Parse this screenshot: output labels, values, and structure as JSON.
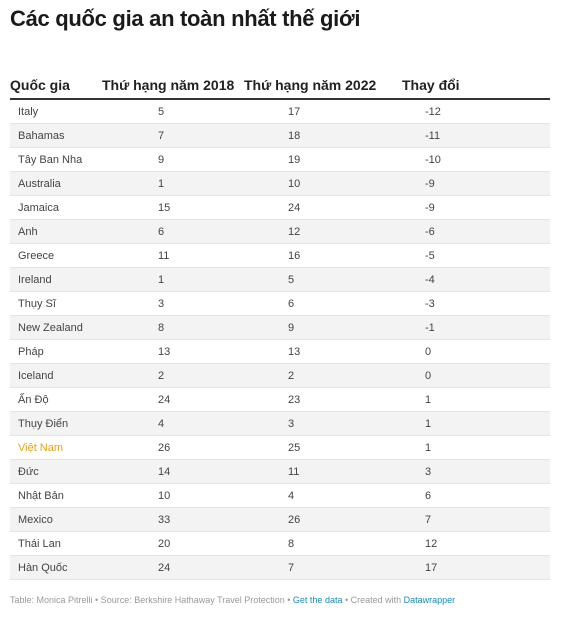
{
  "title": "Các quốc gia an toàn nhất thế giới",
  "chart_data": {
    "type": "table",
    "columns": [
      "Quốc gia",
      "Thứ hạng năm 2018",
      "Thứ hạng năm 2022",
      "Thay đổi"
    ],
    "rows": [
      [
        "Italy",
        "5",
        "17",
        "-12"
      ],
      [
        "Bahamas",
        "7",
        "18",
        "-11"
      ],
      [
        "Tây Ban Nha",
        "9",
        "19",
        "-10"
      ],
      [
        "Australia",
        "1",
        "10",
        "-9"
      ],
      [
        "Jamaica",
        "15",
        "24",
        "-9"
      ],
      [
        "Anh",
        "6",
        "12",
        "-6"
      ],
      [
        "Greece",
        "11",
        "16",
        "-5"
      ],
      [
        "Ireland",
        "1",
        "5",
        "-4"
      ],
      [
        "Thụy Sĩ",
        "3",
        "6",
        "-3"
      ],
      [
        "New Zealand",
        "8",
        "9",
        "-1"
      ],
      [
        "Pháp",
        "13",
        "13",
        "0"
      ],
      [
        "Iceland",
        "2",
        "2",
        "0"
      ],
      [
        "Ấn Độ",
        "24",
        "23",
        "1"
      ],
      [
        "Thụy Điển",
        "4",
        "3",
        "1"
      ],
      [
        "Việt Nam",
        "26",
        "25",
        "1"
      ],
      [
        "Đức",
        "14",
        "11",
        "3"
      ],
      [
        "Nhật Bản",
        "10",
        "4",
        "6"
      ],
      [
        "Mexico",
        "33",
        "26",
        "7"
      ],
      [
        "Thái Lan",
        "20",
        "8",
        "12"
      ],
      [
        "Hàn Quốc",
        "24",
        "7",
        "17"
      ]
    ],
    "highlight_row": "Việt Nam",
    "highlight_color": "#e8a317"
  },
  "footer": {
    "source_text": "Table: Monica Pitrelli • Source: Berkshire Hathaway Travel Protection • ",
    "get_data_link": "Get the data",
    "created_text": " • Created with ",
    "datawrapper_link": "Datawrapper"
  }
}
